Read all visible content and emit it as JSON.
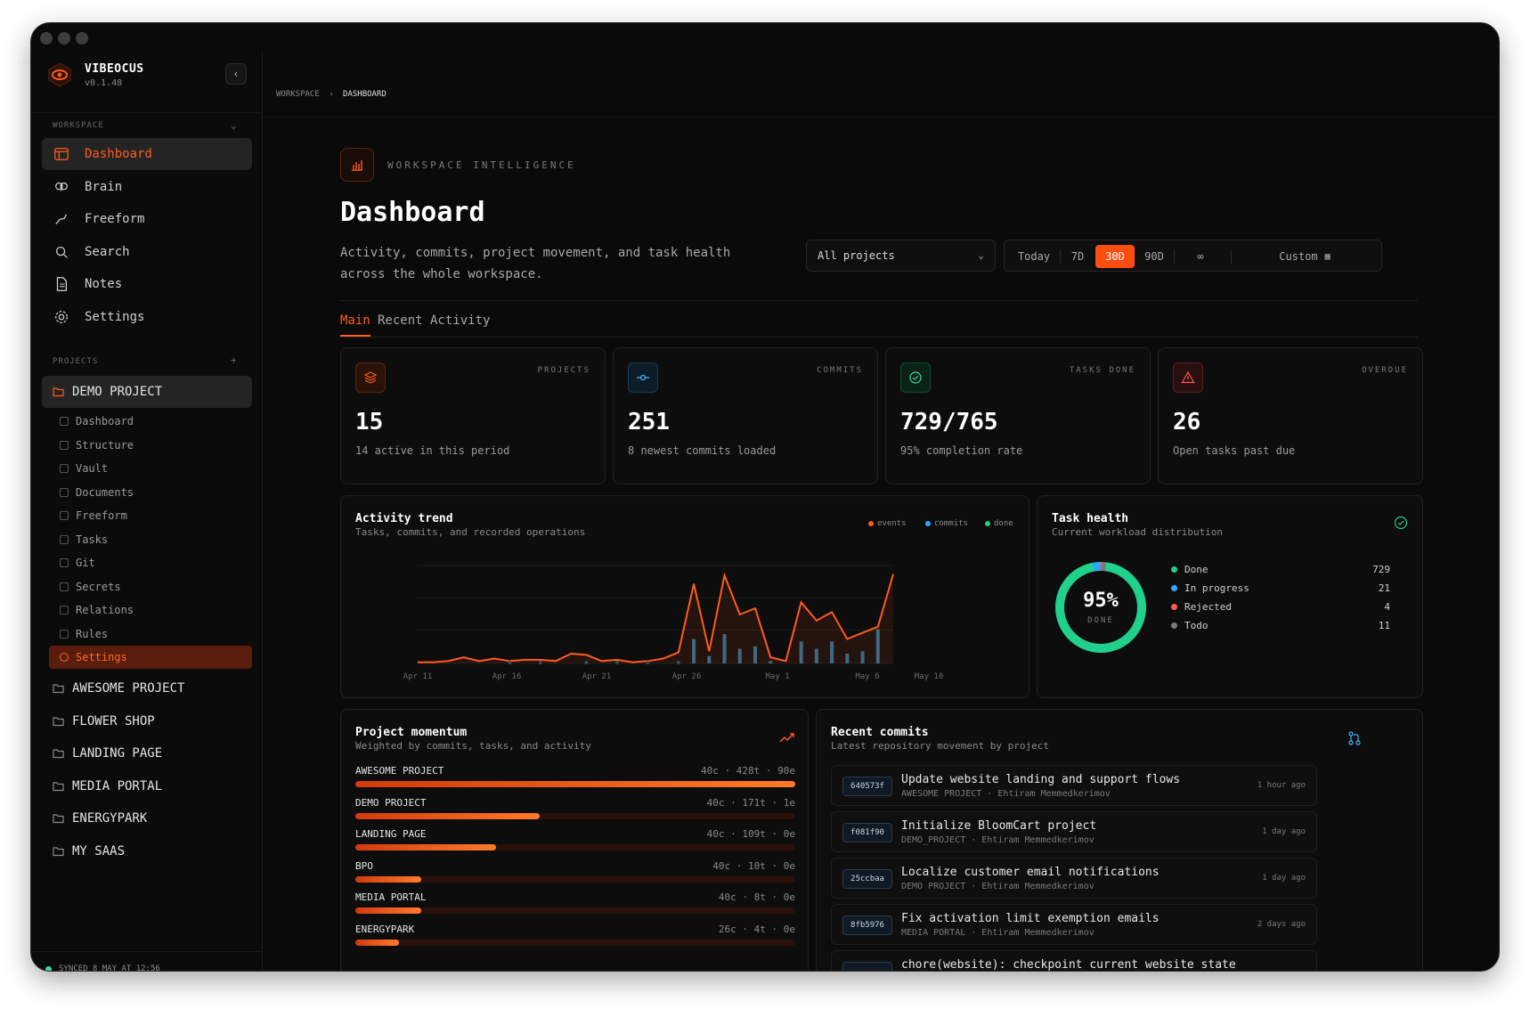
{
  "app": {
    "name": "VIBEOCUS",
    "version": "v0.1.48"
  },
  "sidebar": {
    "workspace_label": "WORKSPACE",
    "nav": [
      {
        "label": "Dashboard",
        "icon": "dashboard-icon",
        "active": true
      },
      {
        "label": "Brain",
        "icon": "brain-icon"
      },
      {
        "label": "Freeform",
        "icon": "freeform-icon"
      },
      {
        "label": "Search",
        "icon": "search-icon"
      },
      {
        "label": "Notes",
        "icon": "notes-icon"
      },
      {
        "label": "Settings",
        "icon": "gear-icon"
      }
    ],
    "projects_label": "PROJECTS",
    "active_project": "DEMO PROJECT",
    "project_subnav": [
      "Dashboard",
      "Structure",
      "Vault",
      "Documents",
      "Freeform",
      "Tasks",
      "Git",
      "Secrets",
      "Relations",
      "Rules",
      "Settings"
    ],
    "active_subnav": "Settings",
    "projects": [
      "AWESOME PROJECT",
      "FLOWER SHOP",
      "LANDING PAGE",
      "MEDIA PORTAL",
      "ENERGYPARK",
      "MY SAAS"
    ],
    "sync_status": "SYNCED 8 MAY AT 12:56"
  },
  "breadcrumb": {
    "root": "WORKSPACE",
    "current": "DASHBOARD"
  },
  "header": {
    "eyebrow": "WORKSPACE INTELLIGENCE",
    "title": "Dashboard",
    "description": "Activity, commits, project movement, and task health across the whole workspace."
  },
  "filters": {
    "project_select": "All projects",
    "ranges": [
      "Today",
      "7D",
      "30D",
      "90D",
      "∞"
    ],
    "active_range": "30D",
    "custom_label": "Custom"
  },
  "tabs": [
    "Main",
    "Recent Activity"
  ],
  "stats": [
    {
      "label": "PROJECTS",
      "value": "15",
      "sub": "14 active in this period",
      "color": "#ff5a1f"
    },
    {
      "label": "COMMITS",
      "value": "251",
      "sub": "8 newest commits loaded",
      "color": "#3fb8ff"
    },
    {
      "label": "TASKS DONE",
      "value": "729/765",
      "sub": "95% completion rate",
      "color": "#3ddc97"
    },
    {
      "label": "OVERDUE",
      "value": "26",
      "sub": "Open tasks past due",
      "color": "#ff5a5a"
    }
  ],
  "activity": {
    "title": "Activity trend",
    "subtitle": "Tasks, commits, and recorded operations",
    "legend": [
      "events",
      "commits",
      "done"
    ],
    "colors": {
      "events": "#ff5a1f",
      "commits": "#2aa8ff",
      "done": "#1fd18a"
    }
  },
  "chart_data": {
    "type": "line",
    "x_ticks": [
      "Apr 11",
      "Apr 16",
      "Apr 21",
      "Apr 26",
      "May 1",
      "May 6",
      "May 10"
    ],
    "series": [
      {
        "name": "events",
        "values": [
          1,
          1,
          2,
          5,
          2,
          4,
          2,
          3,
          3,
          2,
          8,
          7,
          2,
          3,
          1,
          2,
          4,
          9,
          65,
          10,
          72,
          40,
          45,
          5,
          2,
          50,
          35,
          42,
          20,
          25,
          30,
          73
        ]
      },
      {
        "name": "commits",
        "values": [
          0,
          0,
          0,
          0,
          0,
          0,
          0,
          0,
          0,
          0,
          0,
          0,
          0,
          0,
          0,
          0,
          0,
          0,
          20,
          6,
          24,
          12,
          14,
          2,
          0,
          18,
          12,
          18,
          8,
          10,
          28,
          0
        ]
      }
    ]
  },
  "task_health": {
    "title": "Task health",
    "subtitle": "Current workload distribution",
    "percent": "95%",
    "center_label": "DONE",
    "items": [
      {
        "label": "Done",
        "value": "729",
        "color": "#1fd18a"
      },
      {
        "label": "In progress",
        "value": "21",
        "color": "#2aa8ff"
      },
      {
        "label": "Rejected",
        "value": "4",
        "color": "#ff5a5a"
      },
      {
        "label": "Todo",
        "value": "11",
        "color": "#7a7a7a"
      }
    ]
  },
  "momentum": {
    "title": "Project momentum",
    "subtitle": "Weighted by commits, tasks, and activity",
    "rows": [
      {
        "name": "AWESOME PROJECT",
        "stats": "40c · 428t · 90e",
        "level": 1.0
      },
      {
        "name": "DEMO PROJECT",
        "stats": "40c · 171t · 1e",
        "level": 0.42
      },
      {
        "name": "LANDING PAGE",
        "stats": "40c · 109t · 0e",
        "level": 0.32
      },
      {
        "name": "BPO",
        "stats": "40c · 10t · 0e",
        "level": 0.15
      },
      {
        "name": "MEDIA PORTAL",
        "stats": "40c · 8t · 0e",
        "level": 0.15
      },
      {
        "name": "ENERGYPARK",
        "stats": "26c · 4t · 0e",
        "level": 0.1
      }
    ]
  },
  "commits": {
    "title": "Recent commits",
    "subtitle": "Latest repository movement by project",
    "items": [
      {
        "hash": "640573f",
        "message": "Update website landing and support flows",
        "meta": "AWESOME PROJECT · Ehtiram Memmedkerimov",
        "time": "1 hour ago"
      },
      {
        "hash": "f081f90",
        "message": "Initialize BloomCart project",
        "meta": "DEMO_PROJECT · Ehtiram Memmedkerimov",
        "time": "1 day ago"
      },
      {
        "hash": "25ccbaa",
        "message": "Localize customer email notifications",
        "meta": "DEMO PROJECT · Ehtiram Memmedkerimov",
        "time": "1 day ago"
      },
      {
        "hash": "8fb5976",
        "message": "Fix activation limit exemption emails",
        "meta": "MEDIA PORTAL · Ehtiram Memmedkerimov",
        "time": "2 days ago"
      },
      {
        "hash": "",
        "message": "chore(website): checkpoint current website state",
        "meta": "",
        "time": ""
      }
    ]
  }
}
